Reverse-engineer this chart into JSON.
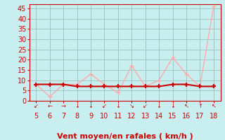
{
  "x": [
    5,
    6,
    7,
    8,
    9,
    10,
    11,
    12,
    13,
    14,
    15,
    16,
    17,
    18
  ],
  "y_moyen": [
    8,
    8,
    8,
    7,
    7,
    7,
    7,
    7,
    7,
    7,
    8,
    8,
    7,
    7
  ],
  "y_rafales": [
    8,
    2,
    8,
    8,
    13,
    8,
    4,
    17,
    7,
    10,
    21,
    13,
    7,
    46
  ],
  "color_moyen": "#cc0000",
  "color_rafales": "#ffaaaa",
  "xlabel": "Vent moyen/en rafales ( km/h )",
  "xlim": [
    4.5,
    18.5
  ],
  "ylim": [
    0,
    47
  ],
  "yticks": [
    0,
    5,
    10,
    15,
    20,
    25,
    30,
    35,
    40,
    45
  ],
  "xticks": [
    5,
    6,
    7,
    8,
    9,
    10,
    11,
    12,
    13,
    14,
    15,
    16,
    17,
    18
  ],
  "background_color": "#c8eef0",
  "grid_color": "#a0c8c0",
  "xlabel_color": "#cc0000",
  "xlabel_fontsize": 8,
  "tick_fontsize": 7,
  "wind_arrows": [
    "↙",
    "←",
    "→",
    "↓",
    "↓",
    "↙",
    "↓",
    "↘",
    "↙",
    "↓",
    "↓",
    "↖",
    "↑",
    "↖"
  ]
}
